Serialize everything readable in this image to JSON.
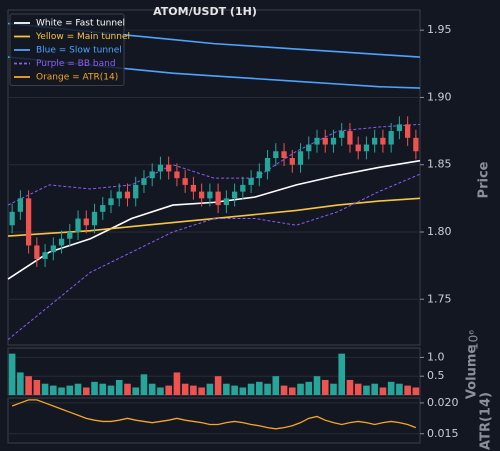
{
  "chart_data": [
    {
      "type": "candlestick",
      "title": "ATOM/USDT (1H)",
      "y_label": "Price",
      "up_color": "#26a69a",
      "down_color": "#ef5350",
      "open": [
        1.805,
        1.815,
        1.825,
        1.79,
        1.78,
        1.785,
        1.79,
        1.795,
        1.8,
        1.81,
        1.805,
        1.815,
        1.82,
        1.825,
        1.83,
        1.825,
        1.835,
        1.84,
        1.845,
        1.85,
        1.845,
        1.84,
        1.835,
        1.83,
        1.825,
        1.83,
        1.82,
        1.825,
        1.83,
        1.835,
        1.84,
        1.845,
        1.855,
        1.86,
        1.855,
        1.85,
        1.86,
        1.865,
        1.87,
        1.865,
        1.87,
        1.875,
        1.865,
        1.86,
        1.865,
        1.87,
        1.865,
        1.875,
        1.88,
        1.87
      ],
      "high": [
        1.821,
        1.831,
        1.831,
        1.796,
        1.791,
        1.796,
        1.801,
        1.806,
        1.816,
        1.816,
        1.821,
        1.826,
        1.831,
        1.836,
        1.836,
        1.841,
        1.846,
        1.851,
        1.856,
        1.856,
        1.851,
        1.846,
        1.841,
        1.836,
        1.836,
        1.836,
        1.831,
        1.836,
        1.841,
        1.846,
        1.851,
        1.861,
        1.866,
        1.866,
        1.861,
        1.866,
        1.871,
        1.876,
        1.876,
        1.876,
        1.881,
        1.881,
        1.871,
        1.871,
        1.876,
        1.876,
        1.881,
        1.886,
        1.886,
        1.876
      ],
      "low": [
        1.799,
        1.809,
        1.784,
        1.774,
        1.774,
        1.779,
        1.784,
        1.789,
        1.794,
        1.799,
        1.799,
        1.809,
        1.814,
        1.819,
        1.819,
        1.819,
        1.829,
        1.834,
        1.839,
        1.839,
        1.834,
        1.829,
        1.824,
        1.819,
        1.819,
        1.814,
        1.814,
        1.819,
        1.824,
        1.829,
        1.834,
        1.839,
        1.849,
        1.849,
        1.844,
        1.844,
        1.854,
        1.859,
        1.859,
        1.859,
        1.864,
        1.859,
        1.854,
        1.854,
        1.859,
        1.859,
        1.859,
        1.869,
        1.864,
        1.854
      ],
      "close": [
        1.815,
        1.825,
        1.79,
        1.78,
        1.785,
        1.79,
        1.795,
        1.8,
        1.81,
        1.805,
        1.815,
        1.82,
        1.825,
        1.83,
        1.825,
        1.835,
        1.84,
        1.845,
        1.85,
        1.845,
        1.84,
        1.835,
        1.83,
        1.825,
        1.83,
        1.82,
        1.825,
        1.83,
        1.835,
        1.84,
        1.845,
        1.855,
        1.86,
        1.855,
        1.85,
        1.86,
        1.865,
        1.87,
        1.865,
        1.87,
        1.875,
        1.865,
        1.86,
        1.865,
        1.87,
        1.865,
        1.875,
        1.88,
        1.87,
        1.86
      ],
      "series": [
        {
          "name": "White = Fast tunnel",
          "color": "#ffffff",
          "lines": [
            [
              1.765,
              1.785,
              1.795,
              1.81,
              1.82,
              1.822,
              1.826,
              1.835,
              1.842,
              1.848,
              1.853
            ]
          ]
        },
        {
          "name": "Yellow = Main tunnel",
          "color": "#f5c542",
          "lines": [
            [
              1.797,
              1.799,
              1.801,
              1.804,
              1.807,
              1.81,
              1.813,
              1.816,
              1.82,
              1.823,
              1.825
            ]
          ]
        },
        {
          "name": "Blue = Slow tunnel",
          "color": "#4da3ff",
          "lines": [
            [
              1.955,
              1.952,
              1.949,
              1.946,
              1.943,
              1.94,
              1.938,
              1.936,
              1.934,
              1.932,
              1.93
            ],
            [
              1.93,
              1.927,
              1.924,
              1.921,
              1.918,
              1.916,
              1.914,
              1.912,
              1.91,
              1.908,
              1.907
            ]
          ]
        },
        {
          "name": "Purple = BB band",
          "color": "#8a5cf6",
          "dashed": true,
          "lines": [
            [
              1.82,
              1.835,
              1.832,
              1.835,
              1.85,
              1.84,
              1.84,
              1.86,
              1.875,
              1.878,
              1.88
            ],
            [
              1.72,
              1.745,
              1.77,
              1.785,
              1.8,
              1.81,
              1.81,
              1.805,
              1.815,
              1.83,
              1.843
            ]
          ]
        }
      ],
      "ylim": [
        1.716,
        1.965
      ],
      "yticks": [
        {
          "value": 1.75,
          "label": "1.75"
        },
        {
          "value": 1.8,
          "label": "1.80"
        },
        {
          "value": 1.85,
          "label": "1.85"
        },
        {
          "value": 1.9,
          "label": "1.90"
        },
        {
          "value": 1.95,
          "label": "1.95"
        }
      ],
      "legend": "upper left",
      "grid": true
    },
    {
      "type": "bar",
      "y_label": "Volume",
      "exponent_label": "10⁶",
      "values": [
        1.1,
        0.6,
        0.5,
        0.4,
        0.3,
        0.25,
        0.2,
        0.25,
        0.3,
        0.2,
        0.35,
        0.3,
        0.25,
        0.4,
        0.3,
        0.2,
        0.55,
        0.3,
        0.2,
        0.25,
        0.6,
        0.3,
        0.25,
        0.2,
        0.3,
        0.5,
        0.3,
        0.25,
        0.2,
        0.3,
        0.35,
        0.3,
        0.5,
        0.25,
        0.2,
        0.3,
        0.35,
        0.5,
        0.4,
        0.3,
        1.1,
        0.4,
        0.3,
        0.25,
        0.3,
        0.2,
        0.35,
        0.3,
        0.25,
        0.2
      ],
      "ylim": [
        0,
        1.25
      ],
      "yticks": [
        0.5,
        {
          "value": 1,
          "label": "1.0"
        }
      ],
      "grid": true
    },
    {
      "type": "line",
      "y_label": "ATR(14)",
      "series": [
        {
          "name": "Orange = ATR(14)",
          "color": "#f5a623",
          "values": [
            0.0195,
            0.02,
            0.0205,
            0.0205,
            0.02,
            0.0195,
            0.019,
            0.0185,
            0.018,
            0.0175,
            0.0172,
            0.017,
            0.017,
            0.0172,
            0.0175,
            0.0172,
            0.017,
            0.0168,
            0.017,
            0.0172,
            0.0175,
            0.0172,
            0.017,
            0.0168,
            0.0165,
            0.0165,
            0.0168,
            0.017,
            0.0168,
            0.0165,
            0.0163,
            0.016,
            0.0158,
            0.016,
            0.0163,
            0.0168,
            0.0175,
            0.0178,
            0.0172,
            0.0168,
            0.0165,
            0.0168,
            0.017,
            0.0168,
            0.0165,
            0.0168,
            0.017,
            0.0168,
            0.0165,
            0.016
          ]
        }
      ],
      "ylim": [
        0.0135,
        0.0208
      ],
      "yticks": [
        0.015,
        {
          "value": 0.02,
          "label": "0.020"
        }
      ],
      "grid": true
    }
  ]
}
